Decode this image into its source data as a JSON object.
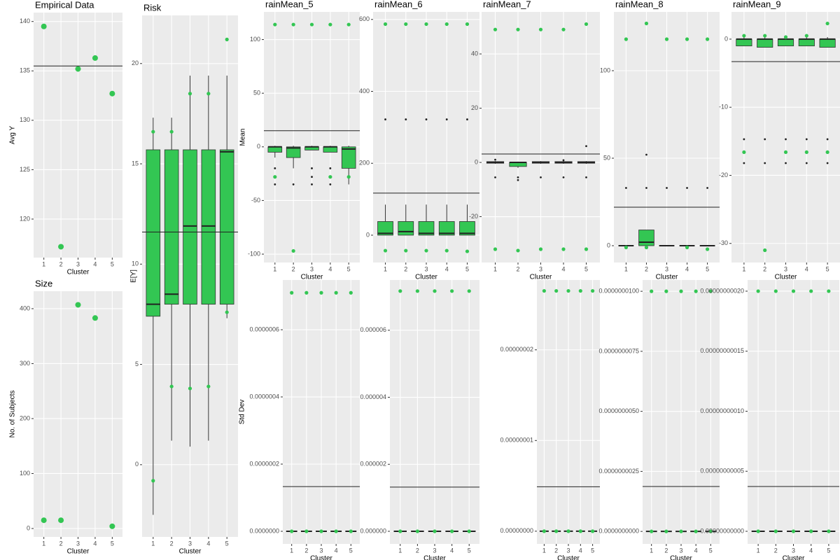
{
  "chart_data": [
    {
      "type": "scatter",
      "title": "Empirical Data",
      "x_label": "Cluster",
      "y_label": "Avg Y",
      "color": "#33c653",
      "categories": [
        "1",
        "2",
        "3",
        "4",
        "5"
      ],
      "values": [
        139.5,
        117.2,
        135.2,
        136.3,
        132.7
      ],
      "hline": 135.5,
      "ylim": [
        116.1,
        140.9
      ],
      "yticks": [
        120,
        125,
        130,
        135,
        140
      ],
      "grid": true
    },
    {
      "type": "scatter",
      "title": "Size",
      "x_label": "Cluster",
      "y_label": "No. of Subjects",
      "color": "#33c653",
      "categories": [
        "1",
        "2",
        "3",
        "4",
        "5"
      ],
      "values": [
        15,
        15,
        407,
        383,
        4
      ],
      "ylim": [
        -15.3,
        431.8
      ],
      "yticks": [
        0,
        100,
        200,
        300,
        400
      ],
      "grid": true
    },
    {
      "type": "boxplot",
      "title": "Risk",
      "x_label": "Cluster",
      "y_label": "E[Y]",
      "color": "#33c653",
      "categories": [
        "1",
        "2",
        "3",
        "4",
        "5"
      ],
      "hline": 11.6,
      "ylim": [
        -3.6,
        22.4
      ],
      "yticks": [
        0,
        5,
        10,
        15,
        20
      ],
      "grid": true,
      "boxes": [
        {
          "low": -2.5,
          "q1": 7.4,
          "median": 8.0,
          "q3": 15.7,
          "high": 17.3,
          "outliers": [],
          "points": [
            16.6,
            -0.8
          ]
        },
        {
          "low": 1.2,
          "q1": 8.0,
          "median": 8.5,
          "q3": 15.7,
          "high": 17.3,
          "outliers": [],
          "points": [
            16.6,
            3.9
          ]
        },
        {
          "low": 0.9,
          "q1": 8.0,
          "median": 11.9,
          "q3": 15.7,
          "high": 19.4,
          "outliers": [],
          "points": [
            18.5,
            3.8
          ]
        },
        {
          "low": 1.2,
          "q1": 8.0,
          "median": 11.9,
          "q3": 15.7,
          "high": 19.4,
          "outliers": [],
          "points": [
            18.5,
            3.9
          ]
        },
        {
          "low": 7.3,
          "q1": 8.0,
          "median": 15.6,
          "q3": 15.7,
          "high": 19.4,
          "outliers": [],
          "points": [
            21.2,
            7.6
          ]
        }
      ]
    },
    {
      "type": "boxplot",
      "title": "rainMean_5",
      "x_label": "Cluster",
      "y_label": "Mean",
      "color": "#33c653",
      "categories": [
        "1",
        "2",
        "3",
        "4",
        "5"
      ],
      "hline": 15,
      "ylim": [
        -107.8,
        125.8
      ],
      "yticks": [
        -100,
        -50,
        0,
        50,
        100
      ],
      "grid": true,
      "boxes": [
        {
          "low": -10,
          "q1": -5,
          "median": 0,
          "q3": 0,
          "high": 1,
          "outliers": [
            -20,
            -35
          ],
          "points": [
            114,
            -28
          ]
        },
        {
          "low": -20,
          "q1": -10,
          "median": -1,
          "q3": 0,
          "high": 1,
          "outliers": [
            -35
          ],
          "points": [
            114,
            -97
          ]
        },
        {
          "low": -3,
          "q1": -3,
          "median": 0,
          "q3": 0,
          "high": 1,
          "outliers": [
            -20,
            -28,
            -35
          ],
          "points": [
            114
          ]
        },
        {
          "low": -5,
          "q1": -5,
          "median": 0,
          "q3": 0,
          "high": 1,
          "outliers": [
            -20,
            -35
          ],
          "points": [
            114,
            -28
          ]
        },
        {
          "low": -35,
          "q1": -20,
          "median": -2,
          "q3": 0,
          "high": 1,
          "outliers": [],
          "points": [
            114,
            -28
          ]
        }
      ]
    },
    {
      "type": "boxplot",
      "title": "rainMean_6",
      "x_label": "Cluster",
      "color": "#33c653",
      "categories": [
        "1",
        "2",
        "3",
        "4",
        "5"
      ],
      "hline": 117,
      "ylim": [
        -76,
        621
      ],
      "yticks": [
        0,
        200,
        400,
        600
      ],
      "grid": true,
      "boxes": [
        {
          "low": 0,
          "q1": 0,
          "median": 5,
          "q3": 38,
          "high": 85,
          "outliers": [
            322
          ],
          "points": [
            587,
            -43
          ]
        },
        {
          "low": 0,
          "q1": 0,
          "median": 10,
          "q3": 38,
          "high": 85,
          "outliers": [
            322
          ],
          "points": [
            587,
            -43
          ]
        },
        {
          "low": 0,
          "q1": 0,
          "median": 5,
          "q3": 38,
          "high": 85,
          "outliers": [
            322
          ],
          "points": [
            587,
            -43
          ]
        },
        {
          "low": 0,
          "q1": 0,
          "median": 5,
          "q3": 38,
          "high": 85,
          "outliers": [
            322
          ],
          "points": [
            587,
            -43
          ]
        },
        {
          "low": 0,
          "q1": 0,
          "median": 5,
          "q3": 38,
          "high": 85,
          "outliers": [
            322
          ],
          "points": [
            587,
            -45
          ]
        }
      ]
    },
    {
      "type": "boxplot",
      "title": "rainMean_7",
      "x_label": "Cluster",
      "color": "#33c653",
      "categories": [
        "1",
        "2",
        "3",
        "4",
        "5"
      ],
      "hline": 3.1,
      "ylim": [
        -36.9,
        55.5
      ],
      "yticks": [
        -20,
        0,
        20,
        40
      ],
      "grid": true,
      "boxes": [
        {
          "low": -0.5,
          "q1": -0.3,
          "median": 0,
          "q3": 0.3,
          "high": 0.5,
          "outliers": [
            -5.5,
            1
          ],
          "points": [
            49,
            -32
          ]
        },
        {
          "low": -2,
          "q1": -1.5,
          "median": 0,
          "q3": 0,
          "high": 0.3,
          "outliers": [
            -5.5,
            -6.5
          ],
          "points": [
            49,
            -32.5
          ]
        },
        {
          "low": -0.5,
          "q1": -0.3,
          "median": 0,
          "q3": 0.3,
          "high": 0.5,
          "outliers": [
            -5.5
          ],
          "points": [
            49,
            -32
          ]
        },
        {
          "low": -0.5,
          "q1": -0.3,
          "median": 0,
          "q3": 0.3,
          "high": 0.5,
          "outliers": [
            -5.5,
            0.8
          ],
          "points": [
            49,
            -32
          ]
        },
        {
          "low": -0.5,
          "q1": -0.3,
          "median": 0,
          "q3": 0.3,
          "high": 0.5,
          "outliers": [
            -5.5,
            6
          ],
          "points": [
            51,
            -32
          ]
        }
      ]
    },
    {
      "type": "boxplot",
      "title": "rainMean_8",
      "x_label": "Cluster",
      "color": "#33c653",
      "categories": [
        "1",
        "2",
        "3",
        "4",
        "5"
      ],
      "hline": 22,
      "ylim": [
        -9.6,
        133.6
      ],
      "yticks": [
        0,
        50,
        100
      ],
      "grid": true,
      "boxes": [
        {
          "low": 0,
          "q1": 0,
          "median": 0,
          "q3": 0,
          "high": 0,
          "outliers": [
            33
          ],
          "points": [
            118,
            -1
          ]
        },
        {
          "low": 0,
          "q1": 0,
          "median": 2,
          "q3": 9,
          "high": 9,
          "outliers": [
            33,
            52
          ],
          "points": [
            127,
            -1
          ]
        },
        {
          "low": 0,
          "q1": 0,
          "median": 0,
          "q3": 0,
          "high": 0,
          "outliers": [
            33
          ],
          "points": [
            118
          ]
        },
        {
          "low": 0,
          "q1": 0,
          "median": 0,
          "q3": 0,
          "high": 0,
          "outliers": [
            33
          ],
          "points": [
            118,
            -1
          ]
        },
        {
          "low": 0,
          "q1": 0,
          "median": 0,
          "q3": 0,
          "high": 0,
          "outliers": [
            33
          ],
          "points": [
            118,
            -2
          ]
        }
      ]
    },
    {
      "type": "boxplot",
      "title": "rainMean_9",
      "x_label": "Cluster",
      "color": "#33c653",
      "categories": [
        "1",
        "2",
        "3",
        "4",
        "5"
      ],
      "hline": -3.3,
      "ylim": [
        -32.8,
        4.0
      ],
      "yticks": [
        -30,
        -20,
        -10,
        0
      ],
      "grid": true,
      "boxes": [
        {
          "low": -1,
          "q1": -1,
          "median": 0,
          "q3": 0,
          "high": 0.3,
          "outliers": [
            -14.7,
            -18.2
          ],
          "points": [
            0.5,
            -16.6
          ]
        },
        {
          "low": -1.2,
          "q1": -1.2,
          "median": 0,
          "q3": 0,
          "high": 0.3,
          "outliers": [
            -14.7,
            -18.2
          ],
          "points": [
            0.5,
            -31
          ]
        },
        {
          "low": -1,
          "q1": -1,
          "median": 0,
          "q3": 0,
          "high": 0.3,
          "outliers": [
            -14.7,
            -18.2
          ],
          "points": [
            0.3,
            -16.6
          ]
        },
        {
          "low": -1,
          "q1": -1,
          "median": 0,
          "q3": 0,
          "high": 0.3,
          "outliers": [
            -14.7,
            -18.2
          ],
          "points": [
            0.5,
            -16.6
          ]
        },
        {
          "low": -1.2,
          "q1": -1.2,
          "median": 0,
          "q3": 0,
          "high": 0.3,
          "outliers": [
            -14.7,
            -18.2
          ],
          "points": [
            2.3,
            -16.6
          ]
        }
      ]
    },
    {
      "type": "boxplot",
      "x_label": "Cluster",
      "y_label": "Std Dev",
      "color": "#33c653",
      "categories": [
        "1",
        "2",
        "3",
        "4",
        "5"
      ],
      "hline": 1.33e-07,
      "ylim": [
        -3.75e-08,
        7.48e-07
      ],
      "grid": true,
      "yticks": [
        {
          "value": 0,
          "label": "0.0000000"
        },
        {
          "value": 2e-07,
          "label": "0.0000002"
        },
        {
          "value": 4e-07,
          "label": "0.0000004"
        },
        {
          "value": 6e-07,
          "label": "0.0000006"
        }
      ],
      "boxes": [
        {
          "q1": 0,
          "median": 0,
          "q3": 0,
          "outliers": [],
          "points": [
            7.1e-07,
            0
          ]
        },
        {
          "q1": 0,
          "median": 0,
          "q3": 0,
          "outliers": [],
          "points": [
            7.1e-07,
            0
          ]
        },
        {
          "q1": 0,
          "median": 0,
          "q3": 0,
          "outliers": [],
          "points": [
            7.1e-07,
            0
          ]
        },
        {
          "q1": 0,
          "median": 0,
          "q3": 0,
          "outliers": [],
          "points": [
            7.1e-07,
            0
          ]
        },
        {
          "q1": 0,
          "median": 0,
          "q3": 0,
          "outliers": [],
          "points": [
            7.1e-07,
            0
          ]
        }
      ]
    },
    {
      "type": "boxplot",
      "x_label": "Cluster",
      "color": "#33c653",
      "categories": [
        "1",
        "2",
        "3",
        "4",
        "5"
      ],
      "hline": 1.32e-06,
      "ylim": [
        -3.76e-07,
        7.5e-06
      ],
      "grid": true,
      "yticks": [
        {
          "value": 0,
          "label": "0.000000"
        },
        {
          "value": 2e-06,
          "label": "0.000002"
        },
        {
          "value": 4e-06,
          "label": "0.000004"
        },
        {
          "value": 6e-06,
          "label": "0.000006"
        }
      ],
      "boxes": [
        {
          "q1": 0,
          "median": 0,
          "q3": 0,
          "outliers": [],
          "points": [
            7.17e-06,
            0
          ]
        },
        {
          "q1": 0,
          "median": 0,
          "q3": 0,
          "outliers": [],
          "points": [
            7.17e-06,
            0
          ]
        },
        {
          "q1": 0,
          "median": 0,
          "q3": 0,
          "outliers": [],
          "points": [
            7.17e-06,
            0
          ]
        },
        {
          "q1": 0,
          "median": 0,
          "q3": 0,
          "outliers": [],
          "points": [
            7.17e-06,
            0
          ]
        },
        {
          "q1": 0,
          "median": 0,
          "q3": 0,
          "outliers": [],
          "points": [
            7.17e-06,
            0
          ]
        }
      ]
    },
    {
      "type": "boxplot",
      "x_label": "Cluster",
      "color": "#33c653",
      "categories": [
        "1",
        "2",
        "3",
        "4",
        "5"
      ],
      "hline": 4.9e-09,
      "ylim": [
        -1.4e-09,
        2.77e-08
      ],
      "grid": true,
      "yticks": [
        {
          "value": 0,
          "label": "0.00000000"
        },
        {
          "value": 1e-08,
          "label": "0.00000001"
        },
        {
          "value": 2e-08,
          "label": "0.00000002"
        }
      ],
      "boxes": [
        {
          "q1": 0,
          "median": 0,
          "q3": 0,
          "outliers": [],
          "points": [
            2.65e-08,
            0
          ]
        },
        {
          "q1": 0,
          "median": 0,
          "q3": 0,
          "outliers": [],
          "points": [
            2.65e-08,
            0
          ]
        },
        {
          "q1": 0,
          "median": 0,
          "q3": 0,
          "outliers": [],
          "points": [
            2.65e-08,
            0
          ]
        },
        {
          "q1": 0,
          "median": 0,
          "q3": 0,
          "outliers": [],
          "points": [
            2.65e-08,
            0
          ]
        },
        {
          "q1": 0,
          "median": 0,
          "q3": 0,
          "outliers": [],
          "points": [
            2.65e-08,
            0
          ]
        }
      ]
    },
    {
      "type": "boxplot",
      "x_label": "Cluster",
      "color": "#33c653",
      "categories": [
        "1",
        "2",
        "3",
        "4",
        "5"
      ],
      "hline": 1.87e-09,
      "ylim": [
        -5.2e-10,
        1.047e-08
      ],
      "grid": true,
      "yticks": [
        {
          "value": 0,
          "label": "0.0000000000"
        },
        {
          "value": 2.5e-09,
          "label": "0.0000000025"
        },
        {
          "value": 5e-09,
          "label": "0.0000000050"
        },
        {
          "value": 7.5e-09,
          "label": "0.0000000075"
        },
        {
          "value": 1e-08,
          "label": "0.0000000100"
        }
      ],
      "boxes": [
        {
          "q1": 0,
          "median": 0,
          "q3": 0,
          "outliers": [],
          "points": [
            1e-08,
            0
          ]
        },
        {
          "q1": 0,
          "median": 0,
          "q3": 0,
          "outliers": [],
          "points": [
            1e-08,
            0
          ]
        },
        {
          "q1": 0,
          "median": 0,
          "q3": 0,
          "outliers": [],
          "points": [
            1e-08,
            0
          ]
        },
        {
          "q1": 0,
          "median": 0,
          "q3": 0,
          "outliers": [],
          "points": [
            1e-08,
            0
          ]
        },
        {
          "q1": 0,
          "median": 0,
          "q3": 0,
          "outliers": [],
          "points": [
            1e-08,
            0
          ]
        }
      ]
    },
    {
      "type": "boxplot",
      "x_label": "Cluster",
      "color": "#33c653",
      "categories": [
        "1",
        "2",
        "3",
        "4",
        "5"
      ],
      "hline": 3.73e-11,
      "ylim": [
        -1.05e-11,
        2.093e-10
      ],
      "grid": true,
      "yticks": [
        {
          "value": 0,
          "label": "0.00000000000"
        },
        {
          "value": 5e-11,
          "label": "0.00000000005"
        },
        {
          "value": 1e-10,
          "label": "0.00000000010"
        },
        {
          "value": 1.5e-10,
          "label": "0.00000000015"
        },
        {
          "value": 2e-10,
          "label": "0.00000000020"
        }
      ],
      "boxes": [
        {
          "q1": 0,
          "median": 0,
          "q3": 0,
          "outliers": [],
          "points": [
            2e-10,
            0
          ]
        },
        {
          "q1": 0,
          "median": 0,
          "q3": 0,
          "outliers": [],
          "points": [
            2e-10,
            0
          ]
        },
        {
          "q1": 0,
          "median": 0,
          "q3": 0,
          "outliers": [],
          "points": [
            2e-10,
            0
          ]
        },
        {
          "q1": 0,
          "median": 0,
          "q3": 0,
          "outliers": [],
          "points": [
            2e-10,
            0
          ]
        },
        {
          "q1": 0,
          "median": 0,
          "q3": 0,
          "outliers": [],
          "points": [
            2e-10,
            0
          ]
        }
      ]
    }
  ]
}
